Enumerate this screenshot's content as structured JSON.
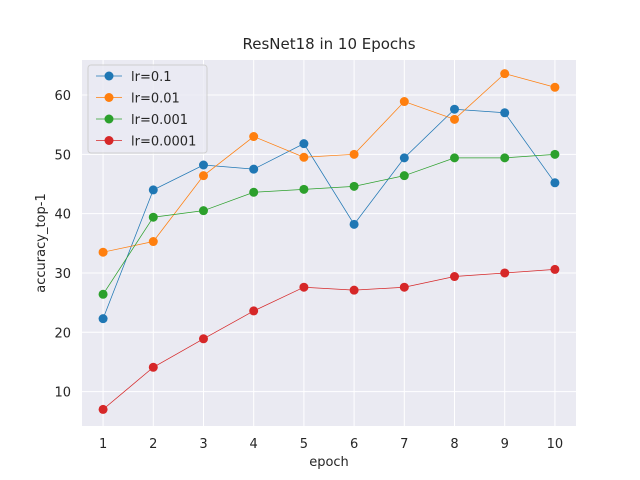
{
  "chart_data": {
    "type": "line",
    "title": "ResNet18 in 10 Epochs",
    "xlabel": "epoch",
    "ylabel": "accuracy_top-1",
    "x": [
      1,
      2,
      3,
      4,
      5,
      6,
      7,
      8,
      9,
      10
    ],
    "xlim": [
      0.58,
      10.42
    ],
    "ylim": [
      4.2,
      65.9
    ],
    "yticks": [
      10,
      20,
      30,
      40,
      50,
      60
    ],
    "grid": true,
    "legend_position": "top-left",
    "series": [
      {
        "name": "lr=0.1",
        "color": "#1f77b4",
        "values": [
          22.3,
          44.0,
          48.2,
          47.5,
          51.8,
          38.2,
          49.4,
          57.6,
          57.0,
          45.2
        ]
      },
      {
        "name": "lr=0.01",
        "color": "#ff7f0e",
        "values": [
          33.5,
          35.3,
          46.4,
          53.0,
          49.5,
          50.0,
          58.9,
          55.9,
          63.6,
          61.3
        ]
      },
      {
        "name": "lr=0.001",
        "color": "#2ca02c",
        "values": [
          26.4,
          39.4,
          40.5,
          43.6,
          44.1,
          44.6,
          46.4,
          49.4,
          49.4,
          50.0
        ]
      },
      {
        "name": "lr=0.0001",
        "color": "#d62728",
        "values": [
          7.0,
          14.1,
          18.9,
          23.6,
          27.6,
          27.1,
          27.6,
          29.4,
          30.0,
          30.6
        ]
      }
    ]
  }
}
